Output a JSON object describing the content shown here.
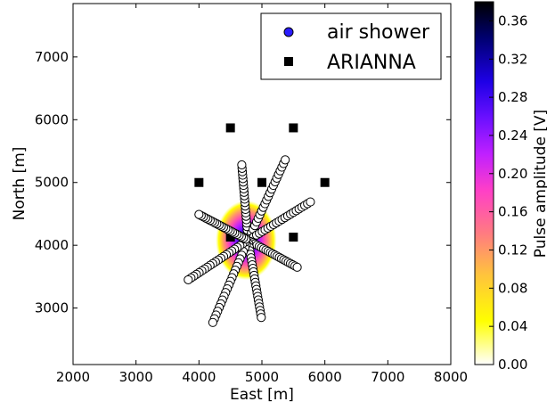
{
  "chart_data": {
    "type": "scatter",
    "xlabel": "East [m]",
    "ylabel": "North [m]",
    "xlim": [
      2000,
      8000
    ],
    "ylim": [
      2100,
      7850
    ],
    "x_ticks": [
      "2000",
      "3000",
      "4000",
      "5000",
      "6000",
      "7000",
      "8000"
    ],
    "y_ticks": [
      "3000",
      "4000",
      "5000",
      "6000",
      "7000"
    ],
    "legend": {
      "position": "top-right",
      "entries": [
        "air shower",
        "ARIANNA"
      ]
    },
    "colorbar": {
      "label": "Pulse amplitude [V]",
      "range": [
        0,
        0.38
      ],
      "ticks": [
        "0.00",
        "0.04",
        "0.08",
        "0.12",
        "0.16",
        "0.20",
        "0.24",
        "0.28",
        "0.32",
        "0.36"
      ],
      "colormap": "gnuplot2_r",
      "colors": [
        "#ffffff",
        "#ffff00",
        "#ff9c63",
        "#ff4fae",
        "#c020ff",
        "#6b10ff",
        "#1e00e6",
        "#000070",
        "#000000"
      ]
    },
    "heat_blob": {
      "center": [
        4750,
        4080
      ],
      "extent_x": [
        4330,
        5300
      ],
      "extent_y": [
        3450,
        4720
      ],
      "peak_amplitude": 0.36
    },
    "arianna_stations": [
      [
        4500,
        5870
      ],
      [
        5500,
        5870
      ],
      [
        4000,
        5000
      ],
      [
        5000,
        5000
      ],
      [
        6000,
        5000
      ],
      [
        4500,
        4130
      ],
      [
        5500,
        4130
      ]
    ],
    "shower_arms": [
      {
        "from": [
          4780,
          4080
        ],
        "to": [
          4680,
          5280
        ]
      },
      {
        "from": [
          4780,
          4080
        ],
        "to": [
          5370,
          5360
        ]
      },
      {
        "from": [
          4780,
          4080
        ],
        "to": [
          5770,
          4690
        ]
      },
      {
        "from": [
          4780,
          4080
        ],
        "to": [
          5560,
          3650
        ]
      },
      {
        "from": [
          4780,
          4080
        ],
        "to": [
          4990,
          2850
        ]
      },
      {
        "from": [
          4780,
          4080
        ],
        "to": [
          4220,
          2770
        ]
      },
      {
        "from": [
          4780,
          4080
        ],
        "to": [
          3830,
          3450
        ]
      },
      {
        "from": [
          4780,
          4080
        ],
        "to": [
          4000,
          4490
        ]
      }
    ],
    "points_per_arm": 22
  }
}
